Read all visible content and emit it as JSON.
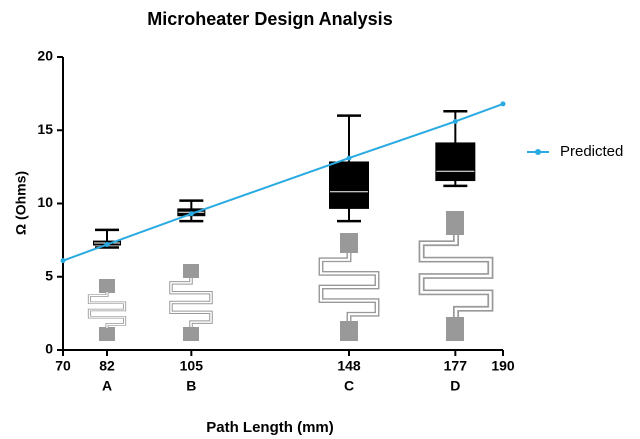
{
  "chart_data": {
    "type": "box",
    "title": "Microheater Design Analysis",
    "x_label": "Path Length  (mm)",
    "y_label": "Ω (Ohms)",
    "x": [
      82,
      105,
      148,
      177
    ],
    "categories": [
      "A",
      "B",
      "C",
      "D"
    ],
    "boxes": [
      {
        "min": 7.0,
        "q1": 7.2,
        "median": 7.3,
        "q3": 7.4,
        "max": 8.2
      },
      {
        "min": 8.8,
        "q1": 9.2,
        "median": 9.4,
        "q3": 9.6,
        "max": 10.2
      },
      {
        "min": 8.8,
        "q1": 9.7,
        "median": 10.8,
        "q3": 12.8,
        "max": 16.0
      },
      {
        "min": 11.2,
        "q1": 11.6,
        "median": 12.2,
        "q3": 14.1,
        "max": 16.3
      }
    ],
    "color": "#000000",
    "series": [
      {
        "name": "Predicted",
        "color": "#29abe2",
        "x": [
          70,
          82,
          105,
          148,
          177,
          190
        ],
        "values": [
          6.1,
          7.2,
          9.3,
          13.1,
          15.6,
          16.8
        ]
      }
    ],
    "xlim": [
      70,
      190
    ],
    "xticks": [
      70,
      82,
      105,
      148,
      177,
      190
    ],
    "ylim": [
      0,
      20
    ],
    "yticks": [
      0,
      5,
      10,
      15,
      20
    ],
    "legend": "right"
  }
}
